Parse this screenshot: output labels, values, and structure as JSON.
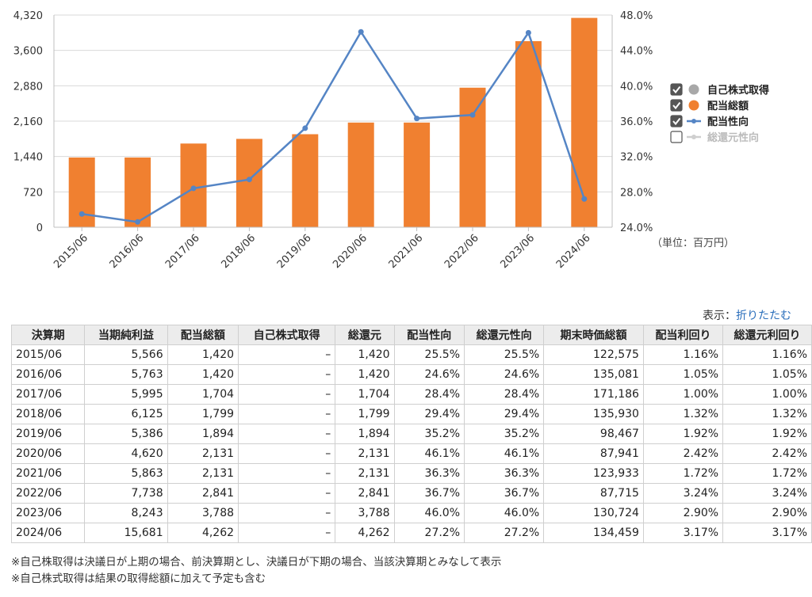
{
  "chart_data": {
    "type": "bar+line",
    "categories": [
      "2015/06",
      "2016/06",
      "2017/06",
      "2018/06",
      "2019/06",
      "2020/06",
      "2021/06",
      "2022/06",
      "2023/06",
      "2024/06"
    ],
    "bars": {
      "name": "配当総額",
      "color": "#f08030",
      "values": [
        1420,
        1420,
        1704,
        1799,
        1894,
        2131,
        2131,
        2841,
        3788,
        4262
      ]
    },
    "line": {
      "name": "配当性向",
      "color": "#5585c5",
      "values": [
        25.5,
        24.6,
        28.4,
        29.4,
        35.2,
        46.1,
        36.3,
        36.7,
        46.0,
        27.2
      ]
    },
    "left_axis": {
      "min": 0,
      "max": 4320,
      "ticks": [
        "0",
        "720",
        "1,440",
        "2,160",
        "2,880",
        "3,600",
        "4,320"
      ]
    },
    "right_axis": {
      "min": 24,
      "max": 48,
      "ticks": [
        "24.0%",
        "28.0%",
        "32.0%",
        "36.0%",
        "40.0%",
        "44.0%",
        "48.0%"
      ]
    },
    "grid": "horizontal",
    "legend_position": "right",
    "legend": [
      {
        "label": "自己株式取得",
        "checked": true,
        "marker": "circle",
        "color": "#a8a8a8"
      },
      {
        "label": "配当総額",
        "checked": true,
        "marker": "circle",
        "color": "#f08030"
      },
      {
        "label": "配当性向",
        "checked": true,
        "marker": "line",
        "color": "#5585c5"
      },
      {
        "label": "総還元性向",
        "checked": false,
        "marker": "line",
        "color": "#cfcfcf"
      }
    ]
  },
  "unit_label": "（単位：百万円）",
  "display": {
    "label": "表示：",
    "link": "折りたたむ"
  },
  "table": {
    "headers": [
      "決算期",
      "当期純利益",
      "配当総額",
      "自己株式取得",
      "総還元",
      "配当性向",
      "総還元性向",
      "期末時価総額",
      "配当利回り",
      "総還元利回り"
    ],
    "rows": [
      [
        "2015/06",
        "5,566",
        "1,420",
        "–",
        "1,420",
        "25.5%",
        "25.5%",
        "122,575",
        "1.16%",
        "1.16%"
      ],
      [
        "2016/06",
        "5,763",
        "1,420",
        "–",
        "1,420",
        "24.6%",
        "24.6%",
        "135,081",
        "1.05%",
        "1.05%"
      ],
      [
        "2017/06",
        "5,995",
        "1,704",
        "–",
        "1,704",
        "28.4%",
        "28.4%",
        "171,186",
        "1.00%",
        "1.00%"
      ],
      [
        "2018/06",
        "6,125",
        "1,799",
        "–",
        "1,799",
        "29.4%",
        "29.4%",
        "135,930",
        "1.32%",
        "1.32%"
      ],
      [
        "2019/06",
        "5,386",
        "1,894",
        "–",
        "1,894",
        "35.2%",
        "35.2%",
        "98,467",
        "1.92%",
        "1.92%"
      ],
      [
        "2020/06",
        "4,620",
        "2,131",
        "–",
        "2,131",
        "46.1%",
        "46.1%",
        "87,941",
        "2.42%",
        "2.42%"
      ],
      [
        "2021/06",
        "5,863",
        "2,131",
        "–",
        "2,131",
        "36.3%",
        "36.3%",
        "123,933",
        "1.72%",
        "1.72%"
      ],
      [
        "2022/06",
        "7,738",
        "2,841",
        "–",
        "2,841",
        "36.7%",
        "36.7%",
        "87,715",
        "3.24%",
        "3.24%"
      ],
      [
        "2023/06",
        "8,243",
        "3,788",
        "–",
        "3,788",
        "46.0%",
        "46.0%",
        "130,724",
        "2.90%",
        "2.90%"
      ],
      [
        "2024/06",
        "15,681",
        "4,262",
        "–",
        "4,262",
        "27.2%",
        "27.2%",
        "134,459",
        "3.17%",
        "3.17%"
      ]
    ]
  },
  "notes": [
    "※自己株取得は決議日が上期の場合、前決算期とし、決議日が下期の場合、当該決算期とみなして表示",
    "※自己株式取得は結果の取得総額に加えて予定も含む"
  ]
}
